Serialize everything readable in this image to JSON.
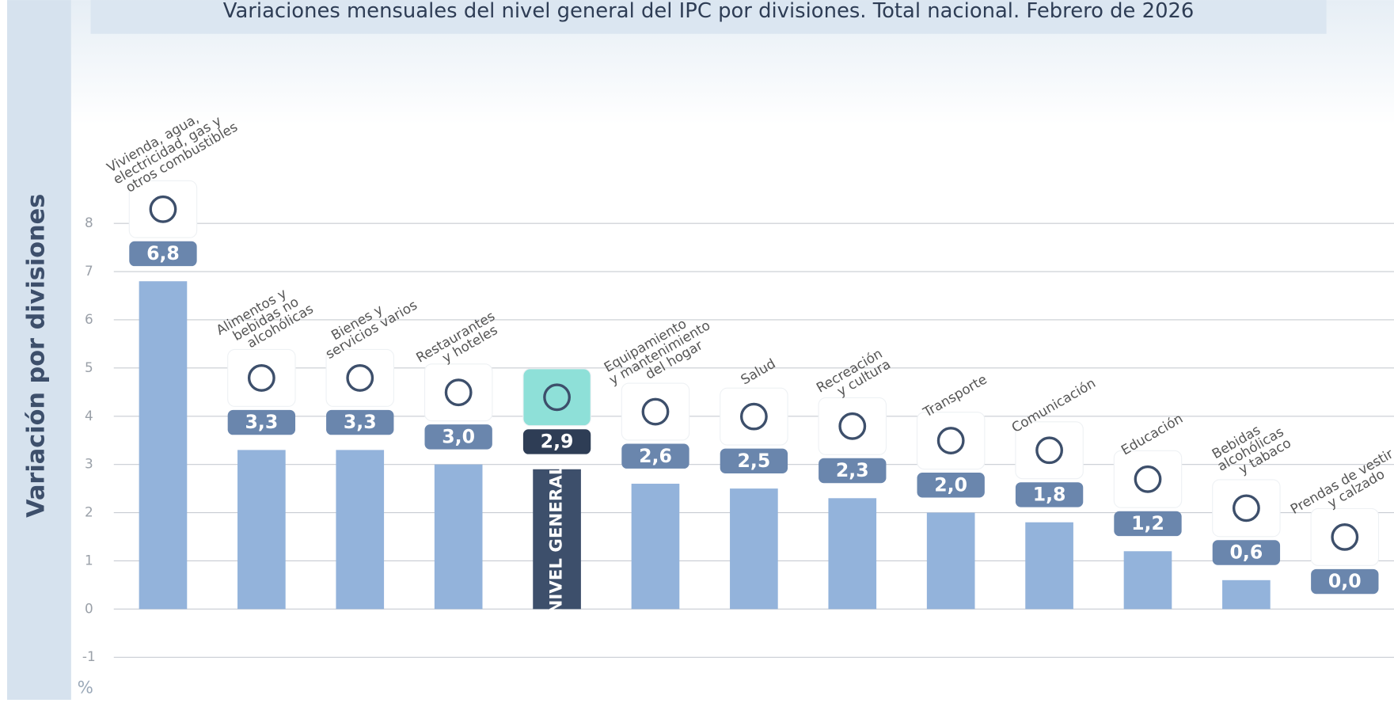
{
  "chart_data": {
    "type": "bar",
    "title": "Variaciones mensuales del nivel general del IPC por divisiones. Total nacional. Febrero de 2026",
    "y_axis_label": "Variación por divisiones",
    "y_unit": "%",
    "categories": [
      [
        "Vivienda, agua,",
        "electricidad, gas y",
        "otros combustibles"
      ],
      [
        "Alimentos y",
        "bebidas no",
        "alcohólicas"
      ],
      [
        "Bienes y",
        "servicios varios"
      ],
      [
        "Restaurantes",
        "y hoteles"
      ],
      [
        "NIVEL GENERAL"
      ],
      [
        "Equipamiento",
        "y mantenimiento",
        "del hogar"
      ],
      [
        "Salud"
      ],
      [
        "Recreación",
        "y cultura"
      ],
      [
        "Transporte"
      ],
      [
        "Comunicación"
      ],
      [
        "Educación"
      ],
      [
        "Bebidas",
        "alcohólicas",
        "y tabaco"
      ],
      [
        "Prendas de vestir",
        "y calzado"
      ]
    ],
    "values": [
      6.8,
      3.3,
      3.3,
      3.0,
      2.9,
      2.6,
      2.5,
      2.3,
      2.0,
      1.8,
      1.2,
      0.6,
      0.0
    ],
    "value_labels": [
      "6,8",
      "3,3",
      "3,3",
      "3,0",
      "2,9",
      "2,6",
      "2,5",
      "2,3",
      "2,0",
      "1,8",
      "1,2",
      "0,6",
      "0,0"
    ],
    "colors": [
      "#93b3db",
      "#93b3db",
      "#93b3db",
      "#93b3db",
      "#3d4f6b",
      "#93b3db",
      "#93b3db",
      "#93b3db",
      "#93b3db",
      "#93b3db",
      "#93b3db",
      "#93b3db",
      "#93b3db"
    ],
    "ylim": [
      -1.9,
      11.6
    ],
    "yticks": [
      -1,
      0,
      1,
      2,
      3,
      4,
      5,
      6,
      7,
      8
    ],
    "grid": true
  }
}
